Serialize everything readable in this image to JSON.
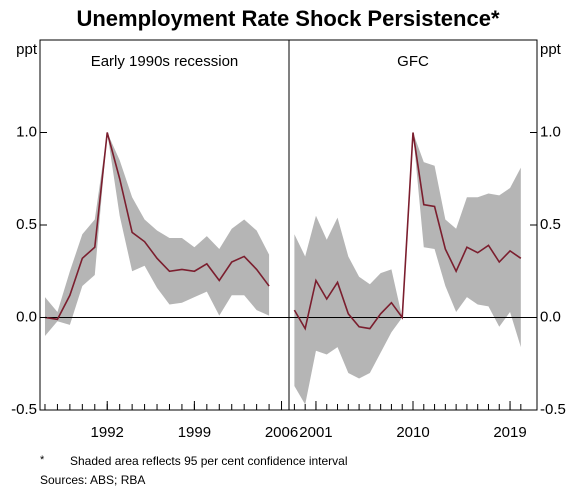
{
  "title": "Unemployment Rate Shock Persistence*",
  "footnote_marker": "*",
  "footnote": "Shaded area reflects 95 per cent confidence interval",
  "sources": "Sources: ABS; RBA",
  "chart_data": [
    {
      "type": "line",
      "title": "Early 1990s recession",
      "y_label": "ppt",
      "x": [
        1987,
        1988,
        1989,
        1990,
        1991,
        1992,
        1993,
        1994,
        1995,
        1996,
        1997,
        1998,
        1999,
        2000,
        2001,
        2002,
        2003,
        2004,
        2005
      ],
      "values": [
        0.0,
        -0.01,
        0.12,
        0.32,
        0.38,
        1.0,
        0.75,
        0.46,
        0.41,
        0.32,
        0.25,
        0.26,
        0.25,
        0.29,
        0.2,
        0.3,
        0.33,
        0.26,
        0.17
      ],
      "lower": [
        -0.1,
        -0.02,
        -0.04,
        0.17,
        0.23,
        1.0,
        0.55,
        0.25,
        0.28,
        0.16,
        0.07,
        0.08,
        0.11,
        0.14,
        0.01,
        0.12,
        0.12,
        0.04,
        0.01
      ],
      "upper": [
        0.11,
        0.03,
        0.25,
        0.45,
        0.53,
        1.0,
        0.85,
        0.65,
        0.53,
        0.47,
        0.43,
        0.43,
        0.38,
        0.44,
        0.37,
        0.48,
        0.53,
        0.47,
        0.34
      ],
      "color": "#7b1e2e",
      "band_color": "#b5b5b5",
      "xlim": [
        1986.6,
        2006.6
      ],
      "xticks": [
        1992,
        1999,
        2006
      ],
      "ylim": [
        -0.5,
        1.5
      ],
      "yticks": [
        -0.5,
        {
          "value": 0,
          "label": "0.0"
        },
        0.5,
        {
          "value": 1,
          "label": "1.0"
        }
      ]
    },
    {
      "type": "line",
      "title": "GFC",
      "y2_label": "ppt",
      "x": [
        1999,
        2000,
        2001,
        2002,
        2003,
        2004,
        2005,
        2006,
        2007,
        2008,
        2009,
        2010,
        2011,
        2012,
        2013,
        2014,
        2015,
        2016,
        2017,
        2018,
        2019,
        2020
      ],
      "values": [
        0.04,
        -0.06,
        0.2,
        0.1,
        0.19,
        0.02,
        -0.05,
        -0.06,
        0.02,
        0.08,
        0.0,
        1.0,
        0.61,
        0.6,
        0.37,
        0.25,
        0.38,
        0.35,
        0.39,
        0.3,
        0.36,
        0.32
      ],
      "lower": [
        -0.37,
        -0.47,
        -0.18,
        -0.2,
        -0.16,
        -0.3,
        -0.33,
        -0.3,
        -0.19,
        -0.08,
        0.0,
        1.0,
        0.38,
        0.37,
        0.17,
        0.03,
        0.11,
        0.07,
        0.06,
        -0.05,
        0.03,
        -0.16
      ],
      "upper": [
        0.45,
        0.33,
        0.55,
        0.42,
        0.54,
        0.33,
        0.22,
        0.18,
        0.24,
        0.26,
        0.0,
        1.0,
        0.84,
        0.82,
        0.53,
        0.48,
        0.65,
        0.65,
        0.67,
        0.66,
        0.7,
        0.81
      ],
      "color": "#7b1e2e",
      "band_color": "#b5b5b5",
      "xlim": [
        1998.5,
        2021.5
      ],
      "xticks": [
        2001,
        2010,
        2019
      ],
      "y2lim": [
        -0.5,
        1.5
      ],
      "y2ticks": [
        -0.5,
        {
          "value": 0,
          "label": "0.0"
        },
        0.5,
        {
          "value": 1,
          "label": "1.0"
        }
      ]
    }
  ]
}
